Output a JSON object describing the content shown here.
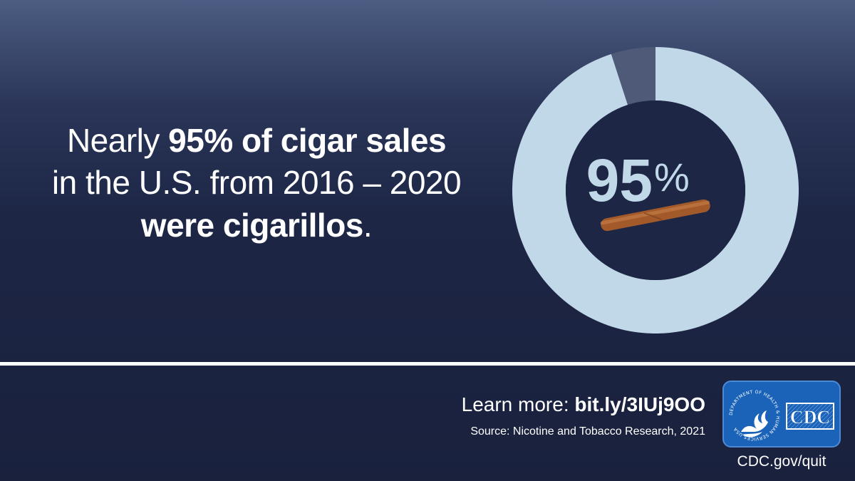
{
  "headline": {
    "line1_pre": "Nearly ",
    "line1_bold": "95% of cigar sales",
    "line2": "in the U.S. from 2016 – 2020",
    "line3_bold": "were cigarillos",
    "line3_end": "."
  },
  "chart_data": {
    "type": "pie",
    "style": "donut",
    "values": [
      95,
      5
    ],
    "center_value": "95",
    "center_unit": "%",
    "colors": [
      "#c1d8e9",
      "#4e5a78"
    ]
  },
  "footer": {
    "learn_prefix": "Learn more: ",
    "learn_link": "bit.ly/3IUj9OO",
    "source": "Source: Nicotine and Tobacco Research, 2021",
    "cdc_url": "CDC.gov/quit",
    "logo_text": "CDC",
    "seal_text": "DEPARTMENT OF HEALTH & HUMAN SERVICES USA"
  },
  "colors": {
    "logo_blue": "#1a63b9",
    "cigar_brown": "#a35a2b"
  }
}
